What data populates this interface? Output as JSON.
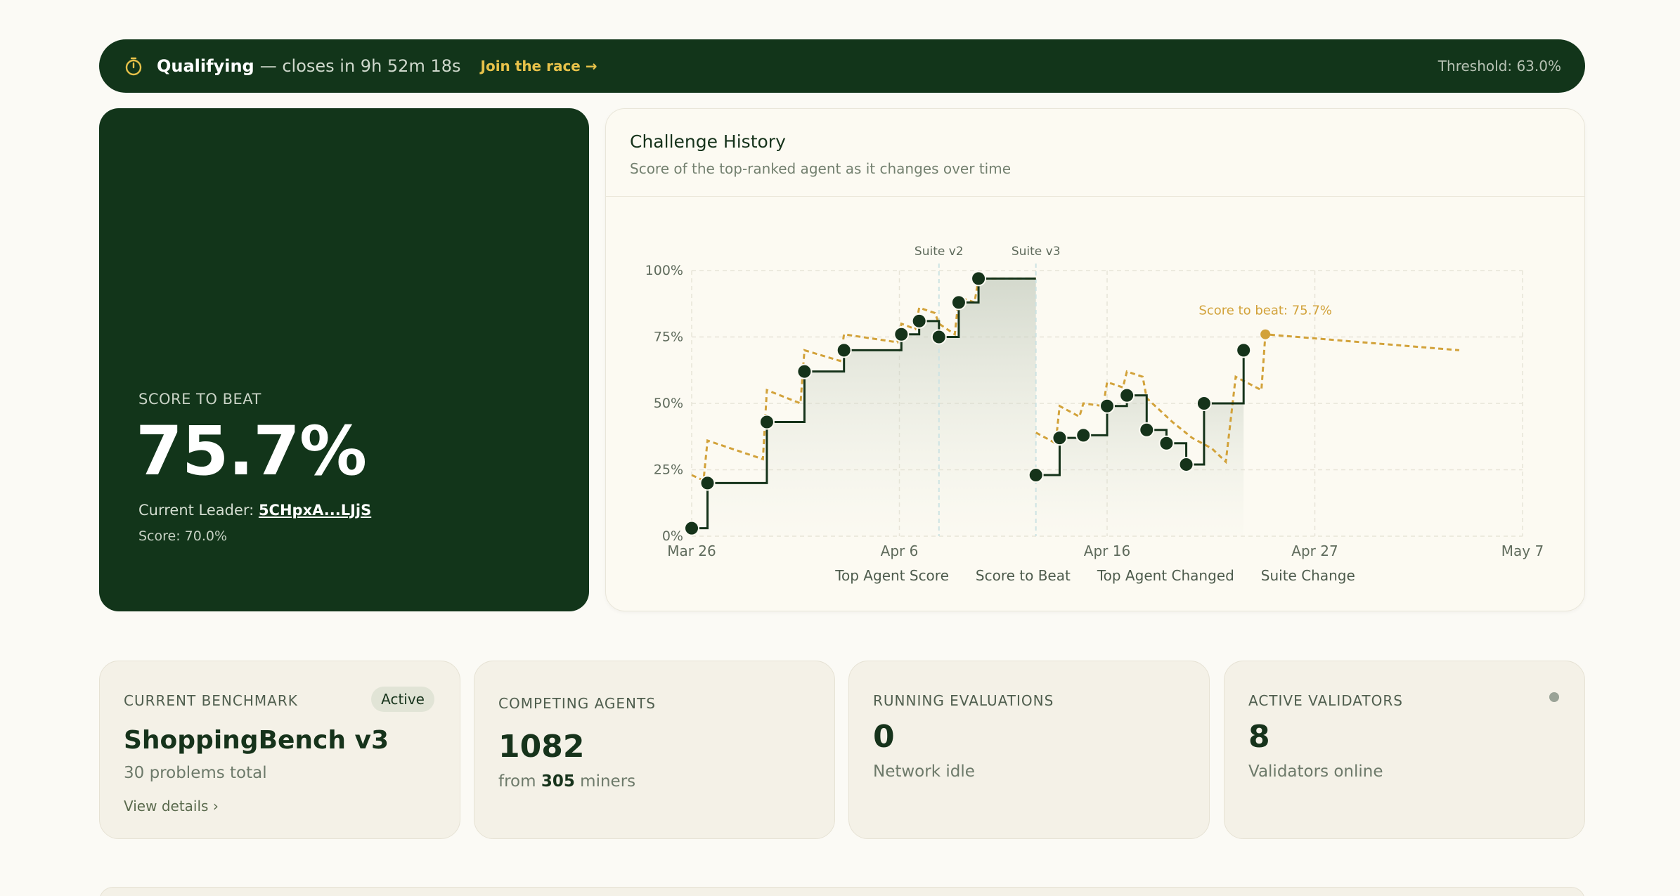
{
  "banner": {
    "status": "Qualifying",
    "closes": "— closes in 9h 52m 18s",
    "join": "Join the race →",
    "threshold": "Threshold: 63.0%",
    "icon": "stopwatch-icon"
  },
  "score": {
    "label": "SCORE TO BEAT",
    "value": "75.7%",
    "leader_prefix": "Current Leader: ",
    "leader": "5CHpxA...LJjS",
    "score_line": "Score: 70.0%"
  },
  "chart": {
    "title": "Challenge History",
    "subtitle": "Score of the top-ranked agent as it changes over time"
  },
  "chart_data": {
    "type": "line",
    "y_ticks": [
      "0%",
      "25%",
      "50%",
      "75%",
      "100%"
    ],
    "x_ticks": [
      "Mar 26",
      "Apr 6",
      "Apr 16",
      "Apr 27",
      "May 7"
    ],
    "ylim": [
      0,
      100
    ],
    "xlim_days": [
      0,
      42
    ],
    "grid": true,
    "legend_position": "bottom",
    "suite_changes": [
      {
        "day": 12.5,
        "label": "Suite v2"
      },
      {
        "day": 17.4,
        "label": "Suite v3"
      }
    ],
    "annotation": "Score to beat: 75.7%",
    "colors": {
      "top": "#15331a",
      "beat": "#d2a23a",
      "suite": "#cde3e3"
    },
    "series": [
      {
        "name": "Top Agent Score",
        "points": [
          [
            0,
            3
          ],
          [
            0.8,
            20
          ],
          [
            3.8,
            43
          ],
          [
            5.7,
            62
          ],
          [
            7.7,
            70
          ],
          [
            10.6,
            76
          ],
          [
            11.5,
            81
          ],
          [
            12.5,
            75
          ],
          [
            13.5,
            88
          ],
          [
            14.5,
            97
          ],
          [
            17.4,
            97
          ]
        ]
      },
      {
        "name": "Score to Beat",
        "points": [
          [
            0,
            23
          ],
          [
            0.6,
            21
          ],
          [
            0.8,
            36
          ],
          [
            3.6,
            29
          ],
          [
            3.8,
            55
          ],
          [
            5.5,
            50
          ],
          [
            5.7,
            70
          ],
          [
            7.5,
            66
          ],
          [
            7.7,
            76
          ],
          [
            10.4,
            73
          ],
          [
            10.6,
            80
          ],
          [
            11.3,
            78
          ],
          [
            11.5,
            86
          ],
          [
            12.3,
            84
          ],
          [
            12.5,
            80
          ],
          [
            13.3,
            76
          ],
          [
            13.5,
            90
          ],
          [
            14.3,
            88
          ],
          [
            14.5,
            97
          ],
          [
            17.4,
            97
          ]
        ]
      },
      {
        "name": "Score to Beat (v3)",
        "points": [
          [
            17.4,
            39
          ],
          [
            18.4,
            35
          ],
          [
            18.6,
            49
          ],
          [
            19.6,
            45
          ],
          [
            19.8,
            50
          ],
          [
            20.8,
            49
          ],
          [
            21,
            58
          ],
          [
            21.8,
            56
          ],
          [
            22,
            62
          ],
          [
            22.8,
            60
          ],
          [
            23,
            52
          ],
          [
            24.3,
            43
          ],
          [
            25.3,
            37
          ],
          [
            26.3,
            33
          ],
          [
            27,
            28
          ],
          [
            27.5,
            60
          ],
          [
            28.8,
            55
          ],
          [
            29,
            76
          ],
          [
            38.8,
            70
          ]
        ]
      },
      {
        "name": "Top Agent Score (v3)",
        "points": [
          [
            17.4,
            23
          ],
          [
            18.6,
            23
          ],
          [
            18.6,
            37
          ],
          [
            19.8,
            38
          ],
          [
            20.8,
            38
          ],
          [
            21,
            49
          ],
          [
            21.8,
            49
          ],
          [
            22,
            53
          ],
          [
            23,
            53
          ],
          [
            23,
            40
          ],
          [
            24,
            40
          ],
          [
            24,
            35
          ],
          [
            25,
            35
          ],
          [
            25,
            27
          ],
          [
            25.9,
            27
          ],
          [
            25.9,
            50
          ],
          [
            27.9,
            50
          ],
          [
            27.9,
            70
          ]
        ]
      }
    ],
    "changes": [
      [
        0,
        3
      ],
      [
        0.8,
        20
      ],
      [
        3.8,
        43
      ],
      [
        5.7,
        62
      ],
      [
        7.7,
        70
      ],
      [
        10.6,
        76
      ],
      [
        11.5,
        81
      ],
      [
        12.5,
        75
      ],
      [
        13.5,
        88
      ],
      [
        14.5,
        97
      ],
      [
        17.4,
        23
      ],
      [
        18.6,
        37
      ],
      [
        19.8,
        38
      ],
      [
        21,
        49
      ],
      [
        22,
        53
      ],
      [
        23,
        40
      ],
      [
        24,
        35
      ],
      [
        25,
        27
      ],
      [
        25.9,
        50
      ],
      [
        27.9,
        70
      ]
    ],
    "beat_marker": [
      29,
      76
    ]
  },
  "legend": {
    "top": "Top Agent Score",
    "beat": "Score to Beat",
    "changed": "Top Agent Changed",
    "suite": "Suite Change"
  },
  "stats": {
    "benchmark": {
      "cap": "CURRENT BENCHMARK",
      "badge": "Active",
      "value": "ShoppingBench v3",
      "sub": "30 problems total",
      "link": "View details"
    },
    "agents": {
      "cap": "COMPETING AGENTS",
      "value": "1082",
      "sub_prefix": "from ",
      "sub_num": "305",
      "sub_suffix": " miners"
    },
    "evals": {
      "cap": "RUNNING EVALUATIONS",
      "value": "0",
      "sub": "Network idle"
    },
    "validators": {
      "cap": "ACTIVE VALIDATORS",
      "value": "8",
      "sub": "Validators online"
    }
  }
}
